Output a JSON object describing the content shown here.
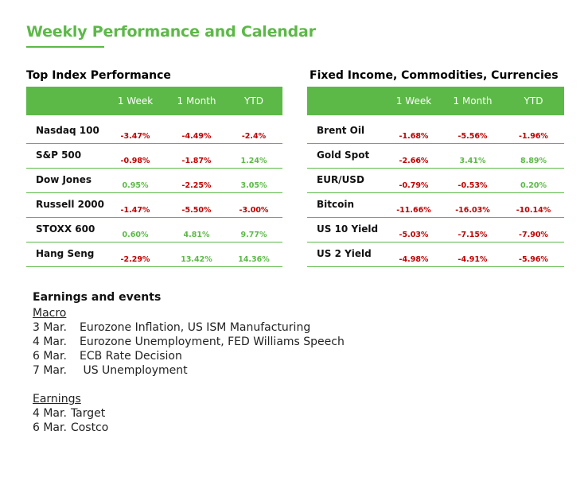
{
  "title": "Weekly Performance and Calendar",
  "colors": {
    "accent": "#5cb947",
    "negative": "#c00000",
    "positive": "#5cb947"
  },
  "left_table": {
    "heading": "Top Index Performance",
    "columns": [
      "1 Week",
      "1 Month",
      "YTD"
    ],
    "rows": [
      {
        "name": "Nasdaq 100",
        "w": "-3.47%",
        "m": "-4.49%",
        "y": "-2.4%"
      },
      {
        "name": "S&P 500",
        "w": "-0.98%",
        "m": "-1.87%",
        "y": "1.24%"
      },
      {
        "name": "Dow Jones",
        "w": "0.95%",
        "m": "-2.25%",
        "y": "3.05%"
      },
      {
        "name": "Russell 2000",
        "w": "-1.47%",
        "m": "-5.50%",
        "y": "-3.00%"
      },
      {
        "name": "STOXX 600",
        "w": "0.60%",
        "m": "4.81%",
        "y": "9.77%"
      },
      {
        "name": "Hang Seng",
        "w": "-2.29%",
        "m": "13.42%",
        "y": "14.36%"
      }
    ]
  },
  "right_table": {
    "heading": "Fixed Income, Commodities, Currencies",
    "columns": [
      "1 Week",
      "1 Month",
      "YTD"
    ],
    "rows": [
      {
        "name": "Brent Oil",
        "w": "-1.68%",
        "m": "-5.56%",
        "y": "-1.96%"
      },
      {
        "name": "Gold Spot",
        "w": "-2.66%",
        "m": "3.41%",
        "y": "8.89%"
      },
      {
        "name": "EUR/USD",
        "w": "-0.79%",
        "m": "-0.53%",
        "y": "0.20%"
      },
      {
        "name": "Bitcoin",
        "w": "-11.66%",
        "m": "-16.03%",
        "y": "-10.14%"
      },
      {
        "name": "US 10 Yield",
        "w": "-5.03%",
        "m": "-7.15%",
        "y": "-7.90%"
      },
      {
        "name": "US 2 Yield",
        "w": "-4.98%",
        "m": "-4.91%",
        "y": "-5.96%"
      }
    ]
  },
  "events": {
    "heading": "Earnings and events",
    "macro_label": "Macro",
    "macro": [
      {
        "date": "3 Mar.",
        "text": "Eurozone Inflation, US ISM Manufacturing"
      },
      {
        "date": "4 Mar.",
        "text": "Eurozone Unemployment, FED Williams Speech"
      },
      {
        "date": "6 Mar.",
        "text": "ECB Rate Decision"
      },
      {
        "date": "7 Mar.",
        "text": " US Unemployment"
      }
    ],
    "earnings_label": "Earnings",
    "earnings": [
      {
        "date": "4 Mar.",
        "text": "Target"
      },
      {
        "date": "6 Mar.",
        "text": "Costco"
      }
    ]
  }
}
